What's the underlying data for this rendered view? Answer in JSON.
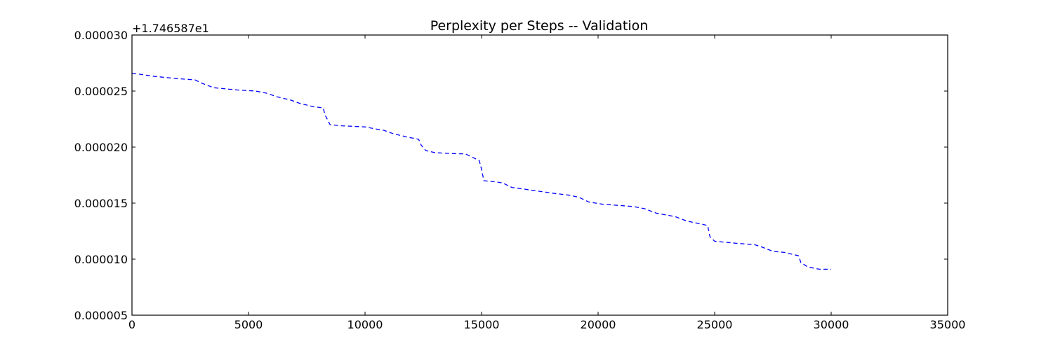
{
  "chart_data": {
    "type": "line",
    "title": "Perplexity per Steps -- Validation",
    "xlabel": "",
    "ylabel": "",
    "y_offset_label": "+1.746587e1",
    "xlim": [
      0,
      35000
    ],
    "ylim": [
      5e-06,
      3e-05
    ],
    "x_ticks": [
      0,
      5000,
      10000,
      15000,
      20000,
      25000,
      30000,
      35000
    ],
    "x_tick_labels": [
      "0",
      "5000",
      "10000",
      "15000",
      "20000",
      "25000",
      "30000",
      "35000"
    ],
    "y_ticks": [
      5e-06,
      1e-05,
      1.5e-05,
      2e-05,
      2.5e-05,
      3e-05
    ],
    "y_tick_labels": [
      "0.000005",
      "0.000010",
      "0.000015",
      "0.000020",
      "0.000025",
      "0.000030"
    ],
    "grid": false,
    "series": [
      {
        "color": "#0000ff",
        "style": "dashed",
        "points": [
          [
            0,
            2.66e-05
          ],
          [
            1000,
            2.63e-05
          ],
          [
            2000,
            2.61e-05
          ],
          [
            2700,
            2.6e-05
          ],
          [
            3000,
            2.57e-05
          ],
          [
            3500,
            2.53e-05
          ],
          [
            4500,
            2.51e-05
          ],
          [
            5300,
            2.5e-05
          ],
          [
            5800,
            2.48e-05
          ],
          [
            6200,
            2.45e-05
          ],
          [
            6800,
            2.42e-05
          ],
          [
            7200,
            2.39e-05
          ],
          [
            7800,
            2.36e-05
          ],
          [
            8200,
            2.35e-05
          ],
          [
            8300,
            2.28e-05
          ],
          [
            8500,
            2.2e-05
          ],
          [
            9000,
            2.19e-05
          ],
          [
            10000,
            2.18e-05
          ],
          [
            10500,
            2.16e-05
          ],
          [
            10800,
            2.15e-05
          ],
          [
            11200,
            2.12e-05
          ],
          [
            11800,
            2.09e-05
          ],
          [
            12300,
            2.07e-05
          ],
          [
            12400,
            2.02e-05
          ],
          [
            12600,
            1.97e-05
          ],
          [
            13000,
            1.95e-05
          ],
          [
            14000,
            1.94e-05
          ],
          [
            14300,
            1.94e-05
          ],
          [
            14600,
            1.91e-05
          ],
          [
            14900,
            1.88e-05
          ],
          [
            15000,
            1.8e-05
          ],
          [
            15100,
            1.7e-05
          ],
          [
            15600,
            1.69e-05
          ],
          [
            15900,
            1.68e-05
          ],
          [
            16300,
            1.64e-05
          ],
          [
            17000,
            1.62e-05
          ],
          [
            18000,
            1.59e-05
          ],
          [
            18800,
            1.57e-05
          ],
          [
            19200,
            1.55e-05
          ],
          [
            19600,
            1.51e-05
          ],
          [
            20200,
            1.49e-05
          ],
          [
            21500,
            1.47e-05
          ],
          [
            22000,
            1.45e-05
          ],
          [
            22500,
            1.41e-05
          ],
          [
            23300,
            1.38e-05
          ],
          [
            23800,
            1.34e-05
          ],
          [
            24500,
            1.31e-05
          ],
          [
            24700,
            1.3e-05
          ],
          [
            24800,
            1.2e-05
          ],
          [
            25000,
            1.16e-05
          ],
          [
            26000,
            1.14e-05
          ],
          [
            26700,
            1.13e-05
          ],
          [
            27000,
            1.11e-05
          ],
          [
            27500,
            1.07e-05
          ],
          [
            28000,
            1.06e-05
          ],
          [
            28600,
            1.03e-05
          ],
          [
            28700,
            9.7e-06
          ],
          [
            29000,
            9.3e-06
          ],
          [
            29500,
            9.1e-06
          ],
          [
            30000,
            9.1e-06
          ]
        ]
      }
    ]
  }
}
